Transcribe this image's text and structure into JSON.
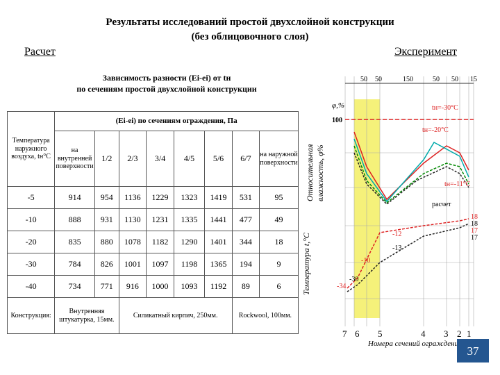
{
  "header": {
    "title": "Результаты исследований простой двухслойной конструкции",
    "title_line2": "(без облицовочного слоя)",
    "left": "Расчет",
    "right": "Эксперимент"
  },
  "subtitle": [
    "Зависимость разности (Ei-ei) от tн",
    "по сечениям простой двухслойной конструкции"
  ],
  "table": {
    "caption": "(Ei-ei) по сечениям ограждения, Па",
    "header": [
      "Температура наружного воздуха, tн°С",
      "на внутренней поверхности",
      "1/2",
      "2/3",
      "3/4",
      "4/5",
      "5/6",
      "6/7",
      "на наружной поверхности"
    ],
    "rows": [
      [
        -5,
        914,
        954,
        1136,
        1229,
        1323,
        1419,
        531,
        95
      ],
      [
        -10,
        888,
        931,
        1130,
        1231,
        1335,
        1441,
        477,
        49
      ],
      [
        -20,
        835,
        880,
        1078,
        1182,
        1290,
        1401,
        344,
        18
      ],
      [
        -30,
        784,
        826,
        1001,
        1097,
        1198,
        1365,
        194,
        9
      ],
      [
        -40,
        734,
        771,
        916,
        1000,
        1093,
        1192,
        89,
        6
      ]
    ],
    "footer": [
      "Конструкция:",
      "Внутренняя штукатурка, 15мм.",
      "Силикатный кирпич, 250мм.",
      "Rockwool, 100мм."
    ]
  },
  "diagram": {
    "widths": [
      "50",
      "50",
      "150",
      "50",
      "50",
      "15"
    ],
    "phi_label": "φ,%",
    "phi_100": "100",
    "t_30": "tн=-30°C",
    "t_20": "tн=-20°C",
    "t_11": "tн=-11°C",
    "calc": "расчет",
    "y_label_1": "Относительная",
    "y_label_2": "влажность, φ%",
    "t_label": "Температура t,°C",
    "temps": [
      "-12",
      "-13",
      "-10",
      "-30",
      "-34",
      "18",
      "18",
      "17",
      "17"
    ],
    "sections": [
      "7",
      "6",
      "5",
      "4",
      "3",
      "2",
      "1"
    ],
    "x_label": "Номера сечений ограждения"
  },
  "page_number": "37"
}
